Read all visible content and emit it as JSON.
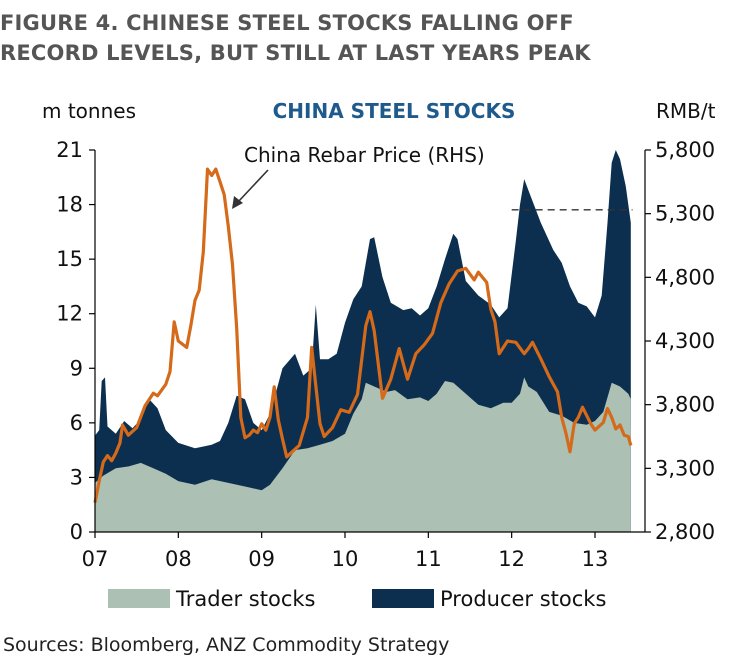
{
  "figure": {
    "title_line1": "FIGURE 4. CHINESE STEEL STOCKS FALLING OFF",
    "title_line2": "RECORD LEVELS, BUT STILL AT LAST YEARS PEAK",
    "source": "Sources: Bloomberg, ANZ Commodity Strategy"
  },
  "colors": {
    "trader": "#acc0b3",
    "producer": "#0c2f4f",
    "rebar": "#d46a1a",
    "title_blue": "#1e5a8c"
  },
  "chart_data": {
    "type": "area",
    "title": "CHINA STEEL STOCKS",
    "left_unit": "m tonnes",
    "right_unit": "RMB/t",
    "annotation": "China Rebar Price (RHS)",
    "x_ticks": [
      "07",
      "08",
      "09",
      "10",
      "11",
      "12",
      "13"
    ],
    "x_range": [
      2007.0,
      2013.6
    ],
    "y_left": {
      "range": [
        0,
        21
      ],
      "ticks": [
        "0",
        "3",
        "6",
        "9",
        "12",
        "15",
        "18",
        "21"
      ]
    },
    "y_right": {
      "range": [
        2800,
        5800
      ],
      "ticks": [
        "2,800",
        "3,300",
        "3,800",
        "4,300",
        "4,800",
        "5,300",
        "5,800"
      ]
    },
    "reference_line": {
      "axis": "right",
      "value": 5330,
      "x_start": 2012.0,
      "x_end": 2013.45,
      "style": "dashed"
    },
    "series": [
      {
        "name": "Trader stocks",
        "kind": "area",
        "axis": "left",
        "points": [
          [
            2007.0,
            2.7
          ],
          [
            2007.1,
            3.1
          ],
          [
            2007.25,
            3.5
          ],
          [
            2007.4,
            3.6
          ],
          [
            2007.55,
            3.8
          ],
          [
            2007.7,
            3.5
          ],
          [
            2007.85,
            3.2
          ],
          [
            2008.0,
            2.8
          ],
          [
            2008.2,
            2.6
          ],
          [
            2008.4,
            2.9
          ],
          [
            2008.6,
            2.7
          ],
          [
            2008.8,
            2.5
          ],
          [
            2009.0,
            2.3
          ],
          [
            2009.1,
            2.6
          ],
          [
            2009.25,
            3.5
          ],
          [
            2009.4,
            4.5
          ],
          [
            2009.55,
            4.6
          ],
          [
            2009.7,
            4.8
          ],
          [
            2009.85,
            5.0
          ],
          [
            2010.0,
            5.4
          ],
          [
            2010.1,
            6.5
          ],
          [
            2010.2,
            7.3
          ],
          [
            2010.25,
            8.2
          ],
          [
            2010.35,
            8.0
          ],
          [
            2010.5,
            7.7
          ],
          [
            2010.6,
            7.8
          ],
          [
            2010.75,
            7.3
          ],
          [
            2010.9,
            7.4
          ],
          [
            2011.0,
            7.2
          ],
          [
            2011.1,
            7.6
          ],
          [
            2011.2,
            8.3
          ],
          [
            2011.3,
            8.2
          ],
          [
            2011.45,
            7.6
          ],
          [
            2011.6,
            7.0
          ],
          [
            2011.75,
            6.8
          ],
          [
            2011.9,
            7.1
          ],
          [
            2012.0,
            7.1
          ],
          [
            2012.1,
            7.6
          ],
          [
            2012.15,
            8.5
          ],
          [
            2012.2,
            8.0
          ],
          [
            2012.3,
            7.7
          ],
          [
            2012.45,
            6.6
          ],
          [
            2012.6,
            6.4
          ],
          [
            2012.75,
            6.0
          ],
          [
            2012.9,
            5.9
          ],
          [
            2013.0,
            6.1
          ],
          [
            2013.1,
            6.6
          ],
          [
            2013.2,
            8.2
          ],
          [
            2013.3,
            8.0
          ],
          [
            2013.4,
            7.6
          ],
          [
            2013.43,
            7.3
          ]
        ]
      },
      {
        "name": "Producer stocks",
        "kind": "area",
        "axis": "left",
        "points": [
          [
            2007.0,
            5.3
          ],
          [
            2007.05,
            5.6
          ],
          [
            2007.08,
            8.3
          ],
          [
            2007.12,
            8.5
          ],
          [
            2007.15,
            5.8
          ],
          [
            2007.25,
            5.4
          ],
          [
            2007.35,
            6.1
          ],
          [
            2007.45,
            5.7
          ],
          [
            2007.55,
            6.2
          ],
          [
            2007.65,
            7.3
          ],
          [
            2007.75,
            6.8
          ],
          [
            2007.85,
            5.6
          ],
          [
            2008.0,
            4.9
          ],
          [
            2008.2,
            4.6
          ],
          [
            2008.4,
            4.8
          ],
          [
            2008.5,
            5.0
          ],
          [
            2008.6,
            6.0
          ],
          [
            2008.7,
            7.5
          ],
          [
            2008.8,
            7.3
          ],
          [
            2008.9,
            6.0
          ],
          [
            2009.0,
            5.6
          ],
          [
            2009.1,
            6.5
          ],
          [
            2009.25,
            9.0
          ],
          [
            2009.4,
            9.8
          ],
          [
            2009.5,
            8.6
          ],
          [
            2009.6,
            9.0
          ],
          [
            2009.65,
            12.5
          ],
          [
            2009.7,
            9.5
          ],
          [
            2009.8,
            9.5
          ],
          [
            2009.9,
            9.8
          ],
          [
            2010.0,
            11.5
          ],
          [
            2010.1,
            12.8
          ],
          [
            2010.2,
            13.5
          ],
          [
            2010.3,
            16.1
          ],
          [
            2010.35,
            16.2
          ],
          [
            2010.45,
            14.0
          ],
          [
            2010.55,
            12.6
          ],
          [
            2010.7,
            12.2
          ],
          [
            2010.8,
            12.3
          ],
          [
            2010.9,
            11.9
          ],
          [
            2011.0,
            12.3
          ],
          [
            2011.1,
            13.5
          ],
          [
            2011.2,
            15.0
          ],
          [
            2011.3,
            16.4
          ],
          [
            2011.35,
            16.1
          ],
          [
            2011.45,
            13.8
          ],
          [
            2011.6,
            13.0
          ],
          [
            2011.75,
            12.5
          ],
          [
            2011.85,
            11.8
          ],
          [
            2011.95,
            12.3
          ],
          [
            2012.05,
            16.0
          ],
          [
            2012.1,
            18.0
          ],
          [
            2012.15,
            19.4
          ],
          [
            2012.2,
            18.8
          ],
          [
            2012.35,
            17.0
          ],
          [
            2012.5,
            15.5
          ],
          [
            2012.6,
            14.8
          ],
          [
            2012.7,
            13.5
          ],
          [
            2012.8,
            12.6
          ],
          [
            2012.9,
            12.4
          ],
          [
            2013.0,
            11.8
          ],
          [
            2013.08,
            13.0
          ],
          [
            2013.15,
            17.0
          ],
          [
            2013.2,
            20.3
          ],
          [
            2013.25,
            21.0
          ],
          [
            2013.3,
            20.5
          ],
          [
            2013.37,
            19.0
          ],
          [
            2013.43,
            17.0
          ]
        ]
      },
      {
        "name": "China Rebar Price (RHS)",
        "kind": "line",
        "axis": "right",
        "points": [
          [
            2007.0,
            3030
          ],
          [
            2007.05,
            3200
          ],
          [
            2007.1,
            3350
          ],
          [
            2007.15,
            3400
          ],
          [
            2007.2,
            3360
          ],
          [
            2007.25,
            3420
          ],
          [
            2007.3,
            3500
          ],
          [
            2007.33,
            3640
          ],
          [
            2007.4,
            3560
          ],
          [
            2007.5,
            3620
          ],
          [
            2007.6,
            3790
          ],
          [
            2007.7,
            3890
          ],
          [
            2007.75,
            3870
          ],
          [
            2007.85,
            3960
          ],
          [
            2007.9,
            4060
          ],
          [
            2007.95,
            4450
          ],
          [
            2008.0,
            4300
          ],
          [
            2008.1,
            4250
          ],
          [
            2008.15,
            4420
          ],
          [
            2008.2,
            4620
          ],
          [
            2008.25,
            4700
          ],
          [
            2008.3,
            5000
          ],
          [
            2008.35,
            5650
          ],
          [
            2008.4,
            5600
          ],
          [
            2008.45,
            5650
          ],
          [
            2008.5,
            5550
          ],
          [
            2008.55,
            5450
          ],
          [
            2008.6,
            5200
          ],
          [
            2008.65,
            4900
          ],
          [
            2008.7,
            4400
          ],
          [
            2008.75,
            3700
          ],
          [
            2008.8,
            3540
          ],
          [
            2008.85,
            3560
          ],
          [
            2008.9,
            3600
          ],
          [
            2008.95,
            3580
          ],
          [
            2009.0,
            3650
          ],
          [
            2009.05,
            3600
          ],
          [
            2009.1,
            3700
          ],
          [
            2009.15,
            3940
          ],
          [
            2009.2,
            3680
          ],
          [
            2009.25,
            3530
          ],
          [
            2009.3,
            3390
          ],
          [
            2009.35,
            3420
          ],
          [
            2009.45,
            3480
          ],
          [
            2009.55,
            3700
          ],
          [
            2009.6,
            4250
          ],
          [
            2009.65,
            3950
          ],
          [
            2009.7,
            3650
          ],
          [
            2009.75,
            3550
          ],
          [
            2009.85,
            3620
          ],
          [
            2009.95,
            3760
          ],
          [
            2010.05,
            3740
          ],
          [
            2010.15,
            3880
          ],
          [
            2010.25,
            4420
          ],
          [
            2010.3,
            4530
          ],
          [
            2010.35,
            4380
          ],
          [
            2010.45,
            3850
          ],
          [
            2010.55,
            4000
          ],
          [
            2010.65,
            4240
          ],
          [
            2010.75,
            4000
          ],
          [
            2010.85,
            4200
          ],
          [
            2010.95,
            4270
          ],
          [
            2011.05,
            4360
          ],
          [
            2011.15,
            4600
          ],
          [
            2011.25,
            4750
          ],
          [
            2011.35,
            4850
          ],
          [
            2011.45,
            4870
          ],
          [
            2011.55,
            4780
          ],
          [
            2011.6,
            4840
          ],
          [
            2011.7,
            4760
          ],
          [
            2011.75,
            4550
          ],
          [
            2011.8,
            4450
          ],
          [
            2011.85,
            4200
          ],
          [
            2011.95,
            4300
          ],
          [
            2012.05,
            4290
          ],
          [
            2012.15,
            4200
          ],
          [
            2012.2,
            4240
          ],
          [
            2012.25,
            4290
          ],
          [
            2012.35,
            4160
          ],
          [
            2012.45,
            4020
          ],
          [
            2012.55,
            3900
          ],
          [
            2012.6,
            3700
          ],
          [
            2012.65,
            3580
          ],
          [
            2012.7,
            3430
          ],
          [
            2012.75,
            3650
          ],
          [
            2012.8,
            3700
          ],
          [
            2012.85,
            3780
          ],
          [
            2012.95,
            3650
          ],
          [
            2013.0,
            3600
          ],
          [
            2013.1,
            3660
          ],
          [
            2013.15,
            3770
          ],
          [
            2013.2,
            3700
          ],
          [
            2013.25,
            3610
          ],
          [
            2013.3,
            3640
          ],
          [
            2013.35,
            3560
          ],
          [
            2013.4,
            3550
          ],
          [
            2013.43,
            3480
          ]
        ]
      }
    ],
    "legend": {
      "placement": "bottom",
      "items": [
        "Trader stocks",
        "Producer stocks"
      ]
    }
  }
}
